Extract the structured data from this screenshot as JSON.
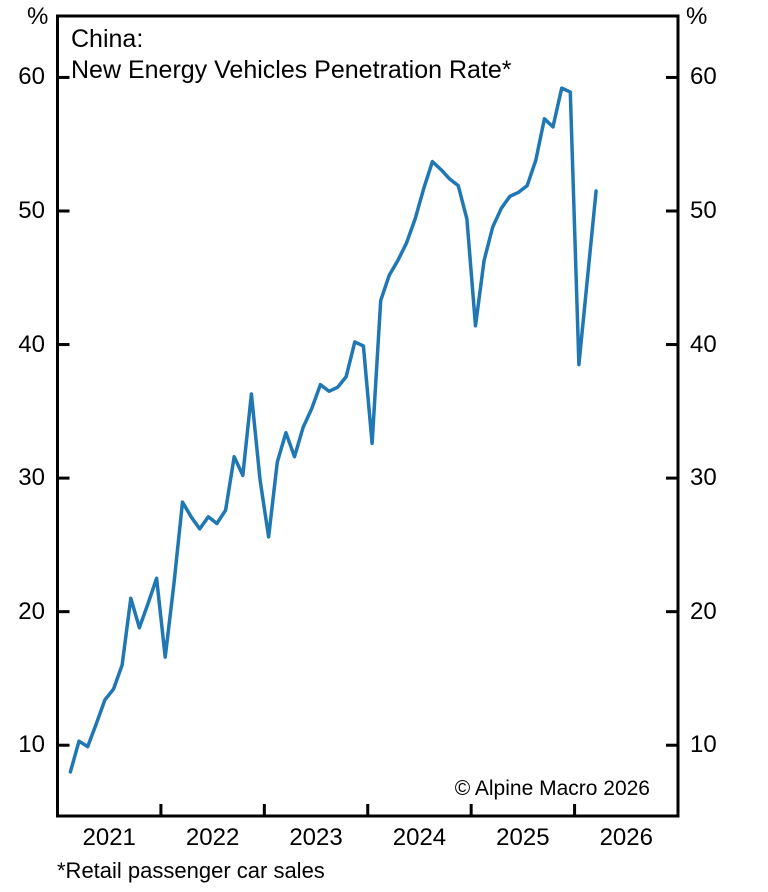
{
  "header": {
    "title_line1": "China:",
    "title_line2": "New Energy Vehicles Penetration Rate*"
  },
  "annotations": {
    "unit_left": "%",
    "unit_right": "%",
    "copyright": "© Alpine Macro 2026",
    "footnote": "*Retail passenger car sales"
  },
  "chart_data": {
    "type": "line",
    "title": "China: New Energy Vehicles Penetration Rate*",
    "subtitle_note": "Retail passenger car sales",
    "unit": "%",
    "grid": false,
    "legend_position": "none",
    "line_color": "#1f77b4",
    "axis_color": "#000000",
    "x_range": [
      2021.0,
      2027.0
    ],
    "y_range": [
      4.7,
      64.6
    ],
    "y_ticks": [
      10,
      20,
      30,
      40,
      50,
      60
    ],
    "x_tick_year_boundaries": [
      2022,
      2023,
      2024,
      2025,
      2026
    ],
    "x_year_labels": [
      "2021",
      "2022",
      "2023",
      "2024",
      "2025",
      "2026"
    ],
    "series": [
      {
        "name": "China NEV retail penetration rate, monthly (%)",
        "start_year": 2021,
        "start_month": 2,
        "values": [
          8.0,
          10.3,
          9.9,
          11.6,
          13.4,
          14.2,
          16.0,
          21.0,
          18.8,
          20.6,
          22.5,
          16.6,
          22.0,
          28.2,
          27.1,
          26.2,
          27.1,
          26.6,
          27.6,
          31.6,
          30.2,
          36.3,
          29.9,
          25.6,
          31.2,
          33.4,
          31.6,
          33.8,
          35.2,
          37.0,
          36.5,
          36.8,
          37.6,
          40.2,
          39.9,
          32.6,
          43.3,
          45.2,
          46.3,
          47.6,
          49.4,
          51.7,
          53.7,
          53.1,
          52.4,
          51.9,
          49.4,
          41.4,
          46.3,
          48.8,
          50.2,
          51.1,
          51.4,
          51.9,
          53.8,
          56.9,
          56.3,
          59.2,
          58.9,
          38.5,
          45.0,
          51.5
        ]
      }
    ]
  }
}
